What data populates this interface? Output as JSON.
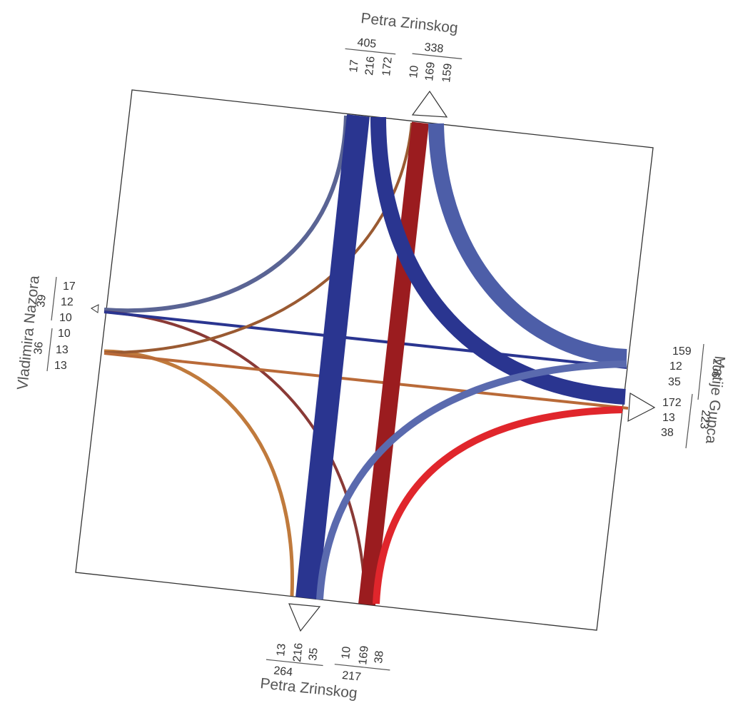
{
  "streets": {
    "north": "Petra Zrinskog",
    "south": "Petra Zrinskog",
    "west": "Vladimira Nazora",
    "east": "Matije Gupca"
  },
  "north": {
    "in_total": "405",
    "in_flows": [
      "17",
      "216",
      "172"
    ],
    "out_total": "338",
    "out_flows": [
      "10",
      "169",
      "159"
    ]
  },
  "south": {
    "in_flows": [
      "13",
      "216",
      "35"
    ],
    "in_total": "264",
    "out_flows": [
      "10",
      "169",
      "38"
    ],
    "out_total": "217"
  },
  "west": {
    "in_flows": [
      "17",
      "12",
      "10"
    ],
    "in_total": "39",
    "out_flows": [
      "10",
      "13",
      "13"
    ],
    "out_total": "36"
  },
  "east": {
    "in_flows": [
      "159",
      "12",
      "35"
    ],
    "in_total": "206",
    "out_flows": [
      "172",
      "13",
      "38"
    ],
    "out_total": "223"
  },
  "colors": {
    "navy": "#2a3590",
    "blue_light": "#4d5ea8",
    "slate": "#5a6494",
    "dark_red": "#9b1c1f",
    "red": "#e0262c",
    "brown": "#9a5a32",
    "orange_brown": "#c07a3c",
    "maroon": "#8a3a36"
  }
}
